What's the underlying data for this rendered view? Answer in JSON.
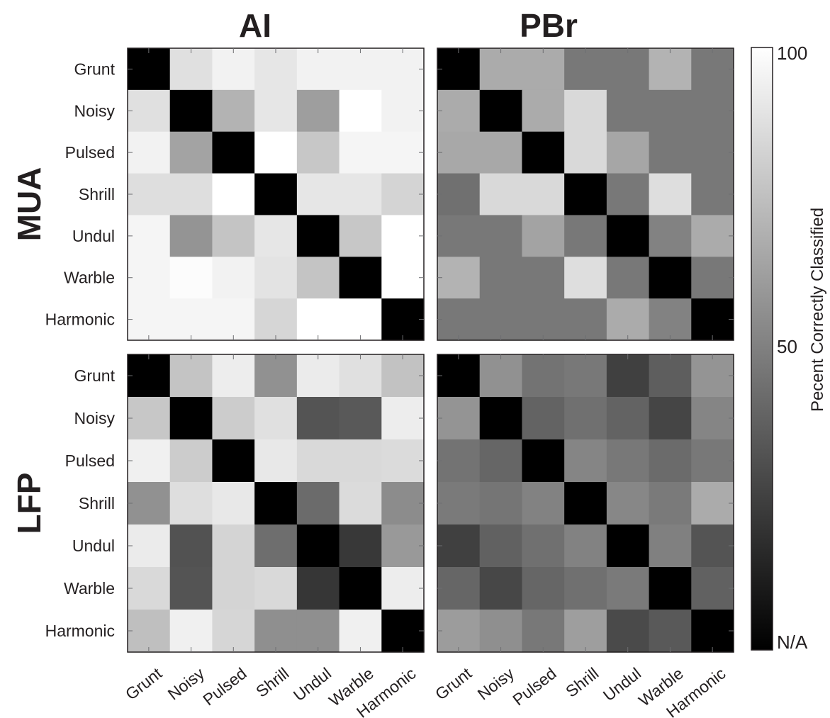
{
  "chart_data": {
    "type": "heatmap",
    "column_titles": [
      "AI",
      "PBr"
    ],
    "row_titles": [
      "MUA",
      "LFP"
    ],
    "categories": [
      "Grunt",
      "Noisy",
      "Pulsed",
      "Shrill",
      "Undul",
      "Warble",
      "Harmonic"
    ],
    "diagonal_label": "N/A",
    "colorbar": {
      "label": "Pecent Correctly Classified",
      "ticks": [
        "100",
        "50",
        "N/A"
      ],
      "range": [
        0,
        100
      ],
      "colormap": "gray"
    },
    "panels": [
      {
        "row": "MUA",
        "column": "AI",
        "values": [
          [
            null,
            88,
            95,
            90,
            95,
            95,
            95
          ],
          [
            88,
            null,
            70,
            90,
            62,
            100,
            95
          ],
          [
            95,
            64,
            null,
            100,
            78,
            96,
            96
          ],
          [
            87,
            87,
            100,
            null,
            90,
            90,
            83
          ],
          [
            96,
            58,
            77,
            90,
            null,
            78,
            100
          ],
          [
            96,
            99,
            95,
            89,
            77,
            null,
            100
          ],
          [
            96,
            96,
            96,
            84,
            100,
            100,
            null
          ]
        ]
      },
      {
        "row": "MUA",
        "column": "PBr",
        "values": [
          [
            null,
            67,
            67,
            47,
            47,
            70,
            47
          ],
          [
            67,
            null,
            67,
            85,
            47,
            47,
            47
          ],
          [
            66,
            66,
            null,
            85,
            65,
            47,
            47
          ],
          [
            44,
            85,
            85,
            null,
            47,
            87,
            47
          ],
          [
            47,
            47,
            64,
            47,
            null,
            51,
            67
          ],
          [
            70,
            47,
            47,
            87,
            47,
            null,
            47
          ],
          [
            47,
            47,
            47,
            47,
            67,
            51,
            null
          ]
        ]
      },
      {
        "row": "LFP",
        "column": "AI",
        "values": [
          [
            null,
            77,
            93,
            57,
            92,
            88,
            76
          ],
          [
            78,
            null,
            80,
            88,
            33,
            35,
            93
          ],
          [
            94,
            80,
            null,
            91,
            85,
            85,
            86
          ],
          [
            57,
            87,
            91,
            null,
            42,
            86,
            55
          ],
          [
            92,
            32,
            83,
            43,
            null,
            22,
            60
          ],
          [
            85,
            33,
            83,
            85,
            21,
            null,
            93
          ],
          [
            75,
            94,
            84,
            56,
            56,
            94,
            null
          ]
        ]
      },
      {
        "row": "LFP",
        "column": "PBr",
        "values": [
          [
            null,
            57,
            45,
            47,
            25,
            37,
            58
          ],
          [
            58,
            null,
            39,
            44,
            39,
            27,
            52
          ],
          [
            45,
            40,
            null,
            52,
            47,
            42,
            47
          ],
          [
            48,
            46,
            51,
            null,
            53,
            48,
            67
          ],
          [
            25,
            38,
            44,
            51,
            null,
            50,
            33
          ],
          [
            40,
            28,
            40,
            44,
            48,
            null,
            38
          ],
          [
            61,
            56,
            47,
            62,
            29,
            35,
            null
          ]
        ]
      }
    ]
  }
}
